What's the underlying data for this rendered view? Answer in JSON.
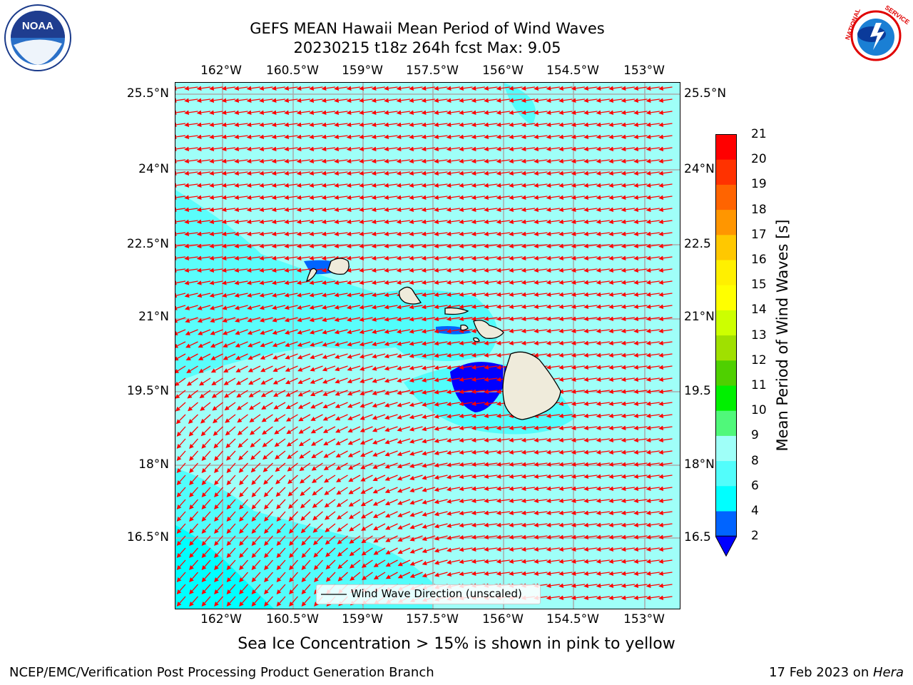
{
  "header": {
    "title_line1": "GEFS MEAN Hawaii Mean Period of Wind Waves",
    "title_line2": "20230215 t18z 264h fcst   Max: 9.05"
  },
  "logos": {
    "left": {
      "name": "noaa-logo",
      "text": "NOAA",
      "ring_text": "NATIONAL OCEANIC AND ATMOSPHERIC ADMINISTRATION · U.S. DEPARTMENT OF COMMERCE"
    },
    "right": {
      "name": "nws-logo",
      "ring_text": "NATIONAL WEATHER SERVICE"
    }
  },
  "map": {
    "lon_ticks": [
      "162°W",
      "160.5°W",
      "159°W",
      "157.5°W",
      "156°W",
      "154.5°W",
      "153°W"
    ],
    "lat_ticks": [
      "25.5°N",
      "24°N",
      "22.5°N",
      "21°N",
      "19.5°N",
      "18°N",
      "16.5°N"
    ],
    "lat_ticks_right": [
      "25.5°N",
      "24°N",
      "22.5",
      "21°N",
      "19.5",
      "18°N",
      "16.5"
    ],
    "lon_range": [
      -163.0,
      -152.3
    ],
    "lat_range": [
      15.3,
      25.8
    ],
    "ocean_color": "#9ffff8",
    "land_color": "#efebdb",
    "arrow_color": "#ff0000",
    "legend_text": "Wind Wave Direction (unscaled)"
  },
  "colorbar": {
    "label": "Mean Period of Wind Waves [s]",
    "ticks": [
      "2",
      "4",
      "6",
      "8",
      "9",
      "10",
      "11",
      "12",
      "13",
      "14",
      "15",
      "16",
      "17",
      "18",
      "19",
      "20",
      "21"
    ],
    "colors": [
      "#0064ff",
      "#00ffff",
      "#52fdfb",
      "#9ffff8",
      "#50f87a",
      "#00f000",
      "#4fd000",
      "#a0e000",
      "#cdff00",
      "#ffff00",
      "#fff000",
      "#ffc800",
      "#ff9600",
      "#ff6400",
      "#ff3200",
      "#ff0000"
    ],
    "under_color": "#0000ff"
  },
  "captions": {
    "sea_ice": "Sea Ice Concentration > 15% is shown in pink to yellow",
    "producer": "NCEP/EMC/Verification Post Processing Product Generation Branch",
    "date_prefix": "17 Feb 2023 on ",
    "host": "Hera"
  }
}
